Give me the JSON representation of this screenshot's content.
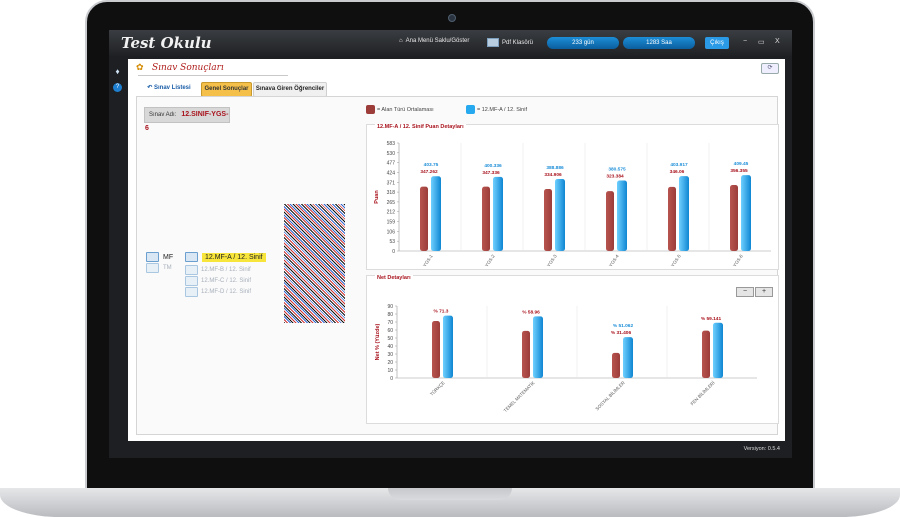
{
  "app": {
    "title": "Test Okulu",
    "version": "Versiyon: 0.5.4"
  },
  "toolbar": {
    "menu_toggle": "Ana Menü Saklu/Göster",
    "pdf": "Pdf Klasörü",
    "pill1": "233 gün",
    "pill2": "1283 Saa",
    "exit": "Çıkış",
    "min": "−",
    "max": "▭",
    "close": "X"
  },
  "panel": {
    "title": "Sınav Sonuçları",
    "refresh_icon": "refresh-icon",
    "tabs": [
      {
        "label": "Sınav Listesi",
        "active": false
      },
      {
        "label": "Genel Sonuçlar",
        "active": true
      },
      {
        "label": "Sınava Giren Öğrenciler",
        "active": false
      }
    ]
  },
  "exam": {
    "label": "Sınav Adı:",
    "value": "12.SINIF-YGS-6"
  },
  "tree": {
    "mf": "MF",
    "tm": "TM",
    "selected": "12.MF-A / 12. Sinif",
    "subs": [
      "12.MF-B / 12. Sinif",
      "12.MF-C / 12. Sinif",
      "12.MF-D / 12. Sinif"
    ]
  },
  "legend": {
    "avg": "= Alan Türü Ortalaması",
    "cls": "= 12.MF-A / 12. Sinif"
  },
  "colors": {
    "avg": "#9c3d3a",
    "cls": "#27a9f0",
    "avg_label": "#a8131d",
    "cls_label": "#1c8ed8"
  },
  "chart_data": [
    {
      "type": "bar",
      "title": "12.MF-A / 12. Sinif Puan Detayları",
      "ylabel": "Puan",
      "ylim": [
        0,
        583
      ],
      "yticks": [
        0,
        53,
        106,
        159,
        212,
        265,
        318,
        371,
        424,
        477,
        530,
        583
      ],
      "categories": [
        "YGS-1",
        "YGS-2",
        "YGS-3",
        "YGS-4",
        "YGS-5",
        "YGS-6"
      ],
      "series": [
        {
          "name": "Alan Türü Ortalaması",
          "values": [
            347.262,
            347.336,
            334.906,
            323.384,
            346.06,
            356.355
          ]
        },
        {
          "name": "12.MF-A / 12. Sinif",
          "values": [
            403.75,
            400.336,
            388.886,
            380.575,
            403.917,
            409.45
          ]
        }
      ],
      "labels": [
        [
          "347.262",
          "347.336",
          "334.906",
          "323.384",
          "346.06",
          "356.355"
        ],
        [
          "403.75",
          "400.336",
          "388.886",
          "380.575",
          "403.917",
          "409.45"
        ]
      ]
    },
    {
      "type": "bar",
      "title": "Net Detayları",
      "ylabel": "Net % (Yüzde)",
      "ylim": [
        0,
        90
      ],
      "yticks": [
        0,
        10,
        20,
        30,
        40,
        50,
        60,
        70,
        80,
        90
      ],
      "categories": [
        "TÜRKÇE",
        "TEMEL MATEMATİK",
        "SOSYAL BİLİMLER",
        "FEN BİLİMLERİ"
      ],
      "series": [
        {
          "name": "Alan Türü Ortalaması",
          "values": [
            71.3,
            58.96,
            31.406,
            59.141
          ]
        },
        {
          "name": "12.MF-A / 12. Sinif",
          "values": [
            78,
            77,
            51.062,
            69
          ]
        }
      ],
      "labels": [
        [
          "% 71.3",
          "% 58.96",
          "% 31.406",
          "% 59.141"
        ],
        [
          "",
          "",
          "% 51.062",
          ""
        ]
      ]
    }
  ],
  "zoom": {
    "minus": "−",
    "plus": "+"
  }
}
